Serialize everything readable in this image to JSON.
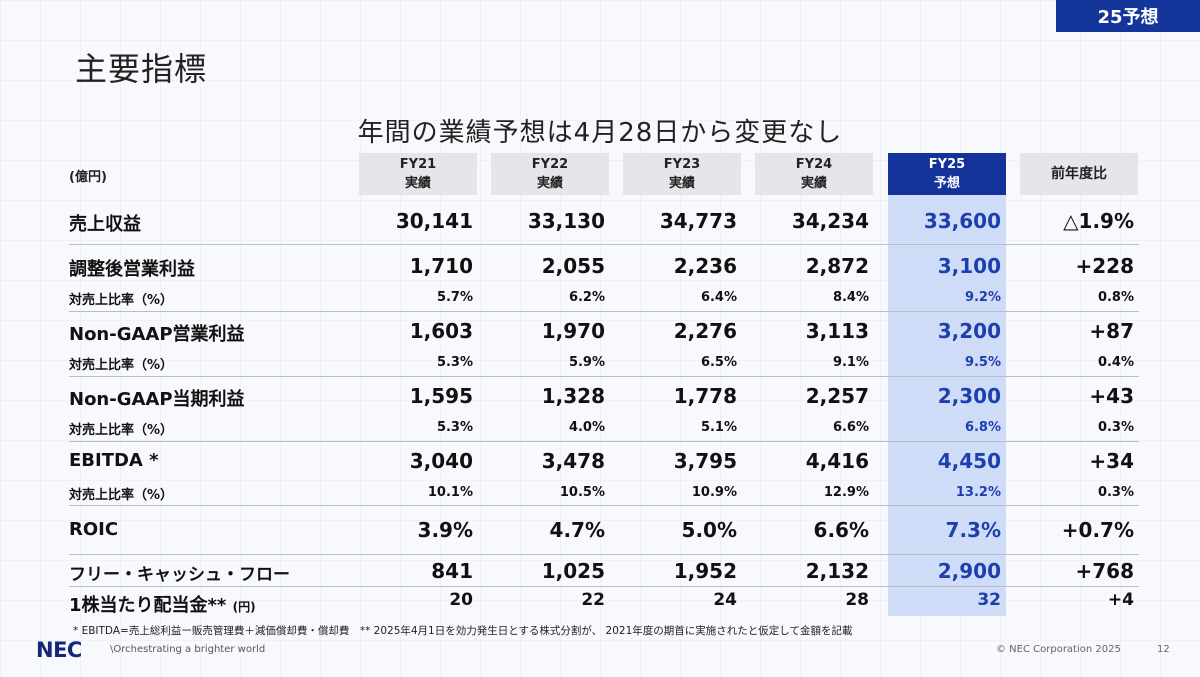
{
  "badge": "25予想",
  "page_title": "主要指標",
  "subtitle": "年間の業績予想は4月28日から変更なし",
  "unit": "(億円)",
  "columns": [
    {
      "line1": "FY21",
      "line2": "実績"
    },
    {
      "line1": "FY22",
      "line2": "実績"
    },
    {
      "line1": "FY23",
      "line2": "実績"
    },
    {
      "line1": "FY24",
      "line2": "実績"
    },
    {
      "line1": "FY25",
      "line2": "予想"
    },
    {
      "line1": "前年度比",
      "line2": ""
    }
  ],
  "rows": [
    {
      "label": "売上収益",
      "values": [
        "30,141",
        "33,130",
        "34,773",
        "34,234",
        "33,600",
        "△1.9%"
      ]
    },
    {
      "label": "調整後営業利益",
      "values": [
        "1,710",
        "2,055",
        "2,236",
        "2,872",
        "3,100",
        "+228"
      ]
    },
    {
      "label": "対売上比率（%）",
      "values": [
        "5.7%",
        "6.2%",
        "6.4%",
        "8.4%",
        "9.2%",
        "0.8%"
      ]
    },
    {
      "label": "Non-GAAP営業利益",
      "values": [
        "1,603",
        "1,970",
        "2,276",
        "3,113",
        "3,200",
        "+87"
      ]
    },
    {
      "label": "対売上比率（%）",
      "values": [
        "5.3%",
        "5.9%",
        "6.5%",
        "9.1%",
        "9.5%",
        "0.4%"
      ]
    },
    {
      "label": "Non-GAAP当期利益",
      "values": [
        "1,595",
        "1,328",
        "1,778",
        "2,257",
        "2,300",
        "+43"
      ]
    },
    {
      "label": "対売上比率（%）",
      "values": [
        "5.3%",
        "4.0%",
        "5.1%",
        "6.6%",
        "6.8%",
        "0.3%"
      ]
    },
    {
      "label": "EBITDA *",
      "values": [
        "3,040",
        "3,478",
        "3,795",
        "4,416",
        "4,450",
        "+34"
      ]
    },
    {
      "label": "対売上比率（%）",
      "values": [
        "10.1%",
        "10.5%",
        "10.9%",
        "12.9%",
        "13.2%",
        "0.3%"
      ]
    },
    {
      "label": "ROIC",
      "values": [
        "3.9%",
        "4.7%",
        "5.0%",
        "6.6%",
        "7.3%",
        "+0.7%"
      ]
    },
    {
      "label": "フリー・キャッシュ・フロー",
      "values": [
        "841",
        "1,025",
        "1,952",
        "2,132",
        "2,900",
        "+768"
      ]
    },
    {
      "label": "1株当たり配当金**",
      "label_unit": "(円)",
      "values": [
        "20",
        "22",
        "24",
        "28",
        "32",
        "+4"
      ]
    }
  ],
  "footnote": "* EBITDA=売上総利益ー販売管理費＋減価償却費・償却費　** 2025年4月1日を効力発生日とする株式分割が、 2021年度の期首に実施されたと仮定して金額を記載",
  "logo": "NEC",
  "tagline": "\\Orchestrating a brighter world",
  "copyright": "© NEC Corporation 2025",
  "page_number": "12",
  "colors": {
    "accent": "#14369a",
    "forecast_band": "#cfdcf8",
    "forecast_text": "#1d3fae"
  }
}
